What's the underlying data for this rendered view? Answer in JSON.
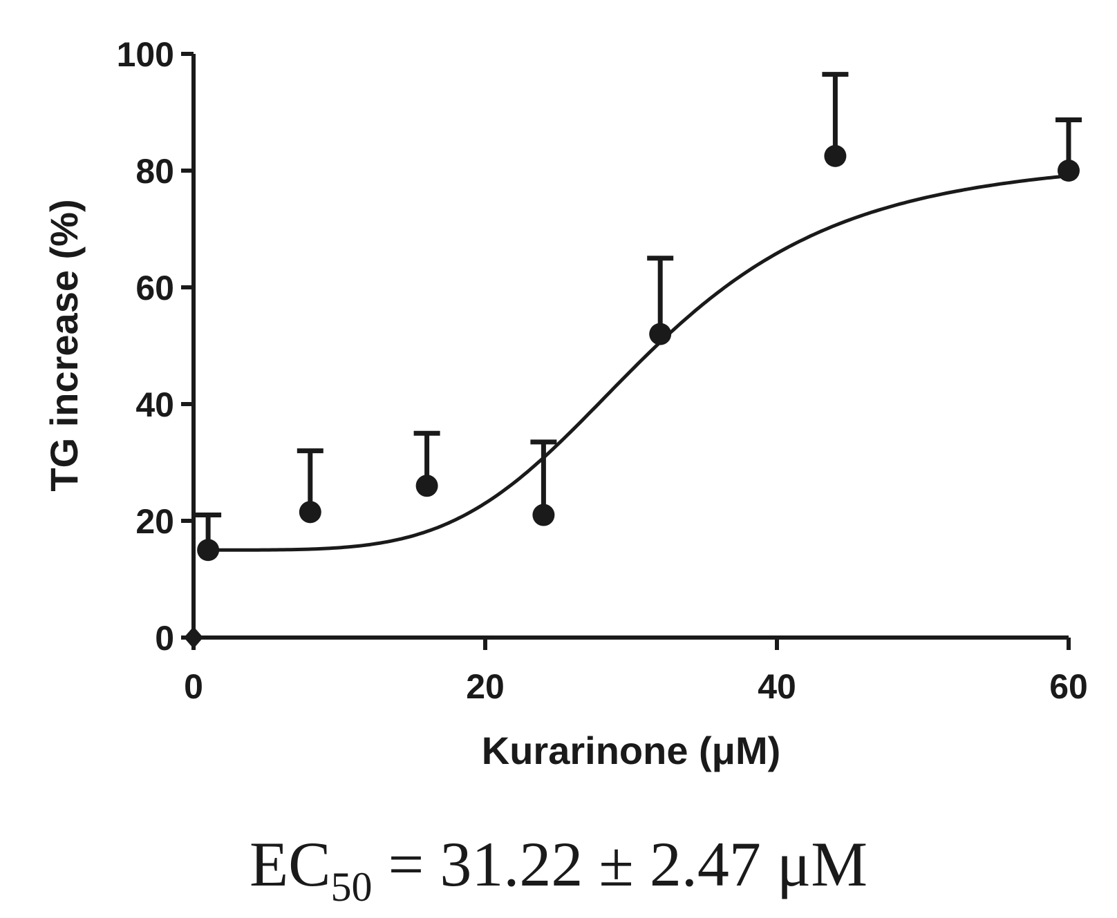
{
  "chart_data": {
    "type": "scatter",
    "xlabel": "Kurarinone (μM)",
    "ylabel": "TG increase (%)",
    "xlim": [
      0,
      60
    ],
    "ylim": [
      0,
      100
    ],
    "xticks": [
      0,
      20,
      40,
      60
    ],
    "yticks": [
      0,
      20,
      40,
      60,
      80,
      100
    ],
    "grid": false,
    "series": [
      {
        "points": [
          {
            "x": 1,
            "y": 15,
            "err": 6
          },
          {
            "x": 8,
            "y": 21.5,
            "err": 10.5
          },
          {
            "x": 16,
            "y": 26,
            "err": 9
          },
          {
            "x": 24,
            "y": 21,
            "err": 12.5
          },
          {
            "x": 32,
            "y": 52,
            "err": 13
          },
          {
            "x": 44,
            "y": 82.5,
            "err": 14
          },
          {
            "x": 60,
            "y": 80,
            "err": 8.7
          }
        ],
        "fit": {
          "model": "sigmoidal dose-response",
          "bottom": 15,
          "top": 82.5,
          "ec50": 31.22,
          "hill_slope": 4.5
        }
      }
    ],
    "annotation": {
      "prefix": "EC",
      "subscript": "50",
      "text": " = 31.22 ± 2.47 μM"
    },
    "colors": {
      "ink": "#1a1a1a",
      "background": "#ffffff"
    }
  }
}
